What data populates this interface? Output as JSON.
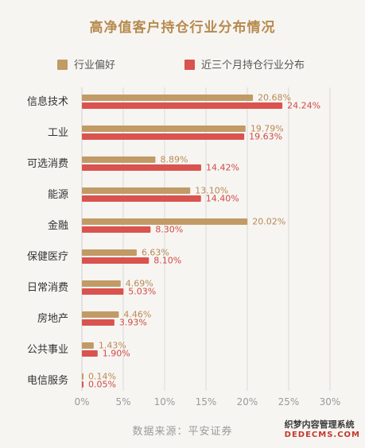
{
  "title": "高净值客户持仓行业分布情况",
  "source": "数据来源：平安证券",
  "watermark": {
    "line1": "织梦内容管理系统",
    "line2": "DEDECMS.COM"
  },
  "colors": {
    "bar1": "#c29a66",
    "bar2": "#d9534f",
    "label1": "#b88a52",
    "label2": "#cf4a45",
    "title": "#b78a4e",
    "grid": "#d9d9d9"
  },
  "chart_data": {
    "type": "bar",
    "orientation": "horizontal",
    "title": "高净值客户持仓行业分布情况",
    "categories": [
      "信息技术",
      "工业",
      "可选消费",
      "能源",
      "金融",
      "保健医疗",
      "日常消费",
      "房地产",
      "公共事业",
      "电信服务"
    ],
    "series": [
      {
        "name": "行业偏好",
        "values": [
          20.68,
          19.79,
          8.89,
          13.1,
          20.02,
          6.63,
          4.69,
          4.46,
          1.43,
          0.14
        ],
        "labels": [
          "20.68%",
          "19.79%",
          "8.89%",
          "13.10%",
          "20.02%",
          "6.63%",
          "4.69%",
          "4.46%",
          "1.43%",
          "0.14%"
        ]
      },
      {
        "name": "近三个月持仓行业分布",
        "values": [
          24.24,
          19.63,
          14.42,
          14.4,
          8.3,
          8.1,
          5.03,
          3.93,
          1.9,
          0.05
        ],
        "labels": [
          "24.24%",
          "19.63%",
          "14.42%",
          "14.40%",
          "8.30%",
          "8.10%",
          "5.03%",
          "3.93%",
          "1.90%",
          "0.05%"
        ]
      }
    ],
    "x_ticks": [
      "0%",
      "5%",
      "10%",
      "15%",
      "20%",
      "25%",
      "30%"
    ],
    "xlim": [
      0,
      30
    ],
    "grid": true,
    "legend_position": "top"
  }
}
